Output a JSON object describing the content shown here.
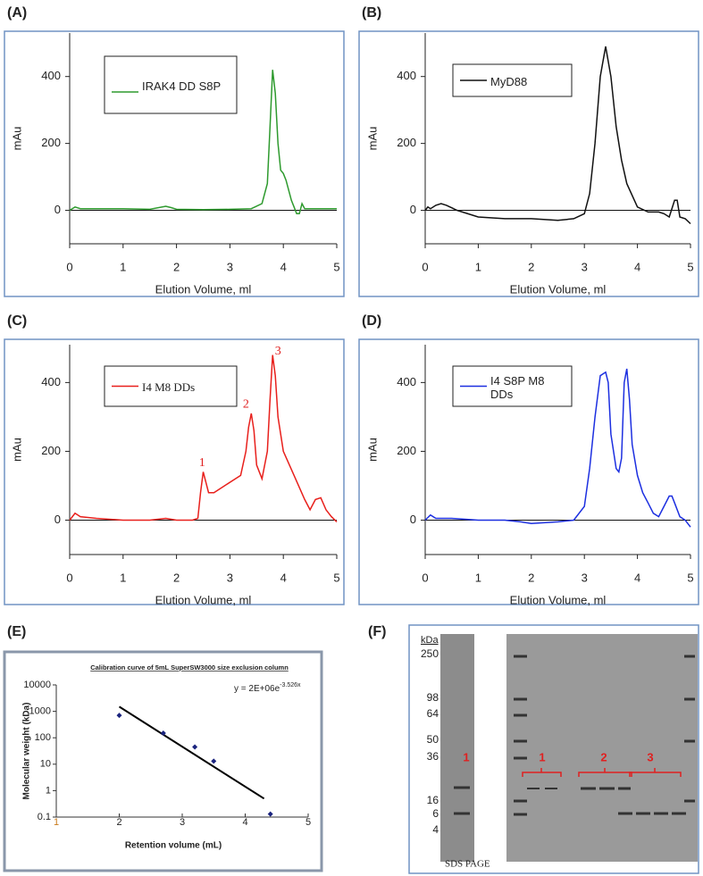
{
  "chart_data": [
    {
      "type": "line",
      "panel": "(A)",
      "ylabel": "mAu",
      "xlabel": "Elution Volume, ml",
      "xlim": [
        0,
        5
      ],
      "xticks": [
        0,
        1,
        2,
        3,
        4,
        5
      ],
      "ylim": [
        -100,
        530
      ],
      "yticks": [
        0,
        200,
        400
      ],
      "zero_line": true,
      "legend": "upper left",
      "x": [
        0,
        0.1,
        0.2,
        0.5,
        1,
        1.5,
        1.8,
        1.9,
        2,
        2.5,
        3,
        3.4,
        3.6,
        3.7,
        3.75,
        3.8,
        3.85,
        3.9,
        3.95,
        4.0,
        4.05,
        4.1,
        4.15,
        4.2,
        4.25,
        4.3,
        4.35,
        4.4,
        4.5,
        5
      ],
      "series": [
        {
          "name": "IRAK4 DD S8P",
          "color": "#2e9a2e",
          "values": [
            0,
            10,
            5,
            5,
            5,
            3,
            12,
            8,
            3,
            2,
            3,
            5,
            20,
            80,
            250,
            420,
            350,
            200,
            120,
            110,
            90,
            60,
            30,
            10,
            -10,
            -10,
            20,
            5,
            5,
            5
          ]
        }
      ]
    },
    {
      "type": "line",
      "panel": "(B)",
      "ylabel": "mAu",
      "xlabel": "Elution Volume, ml",
      "xlim": [
        0,
        5
      ],
      "xticks": [
        0,
        1,
        2,
        3,
        4,
        5
      ],
      "ylim": [
        -100,
        530
      ],
      "yticks": [
        0,
        200,
        400
      ],
      "zero_line": true,
      "legend": "upper left",
      "x": [
        0,
        0.05,
        0.1,
        0.2,
        0.3,
        0.4,
        0.6,
        1,
        1.5,
        2,
        2.5,
        2.8,
        3.0,
        3.1,
        3.2,
        3.3,
        3.4,
        3.5,
        3.6,
        3.7,
        3.8,
        4.0,
        4.2,
        4.4,
        4.5,
        4.6,
        4.7,
        4.75,
        4.8,
        4.9,
        5
      ],
      "series": [
        {
          "name": "MyD88",
          "color": "#111111",
          "values": [
            0,
            10,
            5,
            15,
            20,
            15,
            0,
            -20,
            -25,
            -25,
            -30,
            -25,
            -10,
            50,
            200,
            400,
            490,
            400,
            250,
            150,
            80,
            10,
            -5,
            -5,
            -10,
            -20,
            30,
            30,
            -20,
            -25,
            -40
          ]
        }
      ]
    },
    {
      "type": "line",
      "panel": "(C)",
      "ylabel": "mAu",
      "xlabel": "Elution Volume, ml",
      "xlim": [
        0,
        5
      ],
      "xticks": [
        0,
        1,
        2,
        3,
        4,
        5
      ],
      "ylim": [
        -100,
        510
      ],
      "yticks": [
        0,
        200,
        400
      ],
      "zero_line": true,
      "legend": "upper left",
      "x": [
        0,
        0.1,
        0.2,
        0.5,
        1,
        1.5,
        1.8,
        2,
        2.3,
        2.4,
        2.45,
        2.5,
        2.55,
        2.6,
        2.7,
        2.9,
        3.1,
        3.2,
        3.3,
        3.35,
        3.4,
        3.45,
        3.5,
        3.6,
        3.7,
        3.75,
        3.8,
        3.85,
        3.9,
        4.0,
        4.2,
        4.4,
        4.5,
        4.6,
        4.7,
        4.8,
        4.9,
        5
      ],
      "series": [
        {
          "name": "I4 M8 DDs",
          "color": "#e8201c",
          "values": [
            0,
            20,
            10,
            5,
            0,
            0,
            5,
            0,
            0,
            5,
            80,
            140,
            110,
            80,
            80,
            100,
            120,
            130,
            200,
            270,
            310,
            260,
            160,
            120,
            200,
            350,
            480,
            420,
            300,
            200,
            130,
            60,
            30,
            60,
            65,
            30,
            10,
            -5
          ]
        }
      ],
      "annotations": [
        {
          "text": "1",
          "x": 2.48,
          "y": 165
        },
        {
          "text": "2",
          "x": 3.3,
          "y": 335
        },
        {
          "text": "3",
          "x": 3.9,
          "y": 490
        }
      ]
    },
    {
      "type": "line",
      "panel": "(D)",
      "ylabel": "mAu",
      "xlabel": "Elution Volume, ml",
      "xlim": [
        0,
        5
      ],
      "xticks": [
        0,
        1,
        2,
        3,
        4,
        5
      ],
      "ylim": [
        -100,
        510
      ],
      "yticks": [
        0,
        200,
        400
      ],
      "zero_line": true,
      "legend": "upper left",
      "x": [
        0,
        0.1,
        0.2,
        0.5,
        1,
        1.5,
        1.8,
        2,
        2.5,
        2.8,
        3.0,
        3.1,
        3.2,
        3.3,
        3.4,
        3.45,
        3.5,
        3.6,
        3.65,
        3.7,
        3.75,
        3.8,
        3.85,
        3.9,
        4.0,
        4.1,
        4.2,
        4.3,
        4.4,
        4.5,
        4.6,
        4.65,
        4.7,
        4.8,
        4.9,
        5
      ],
      "series": [
        {
          "name": "I4 S8P M8 DDs",
          "color": "#1c2fe0",
          "values": [
            0,
            15,
            5,
            5,
            0,
            0,
            -5,
            -10,
            -5,
            0,
            40,
            150,
            300,
            420,
            430,
            400,
            250,
            150,
            140,
            180,
            400,
            440,
            350,
            220,
            130,
            80,
            50,
            20,
            10,
            40,
            70,
            70,
            50,
            10,
            0,
            -20
          ]
        }
      ]
    },
    {
      "type": "scatter",
      "panel": "(E)",
      "title": "Calibration curve of 5mL SuperSW3000 size exclusion column",
      "ylabel": "Molecular weight (kDa)",
      "xlabel": "Retention volume (mL)",
      "log_y": true,
      "xlim": [
        1,
        5
      ],
      "xticks": [
        1,
        2,
        3,
        4,
        5
      ],
      "ylim": [
        0.1,
        10000
      ],
      "yticks": [
        0.1,
        1,
        10,
        100,
        1000,
        10000
      ],
      "x": [
        2,
        2.7,
        3.2,
        3.5,
        4.4
      ],
      "values": [
        700,
        150,
        45,
        13,
        0.13
      ],
      "color": "#1a237e",
      "fit": {
        "x": [
          2,
          4.3
        ],
        "values": [
          1500,
          0.5
        ],
        "color": "#000000"
      },
      "equation": {
        "text": "y = 2E+06e",
        "exponent": "-3.526x"
      }
    }
  ],
  "gel": {
    "panel": "(F)",
    "unit": "kDa",
    "markers": [
      "250",
      "98",
      "64",
      "50",
      "36",
      "16",
      "6",
      "4"
    ],
    "lanes": [
      "1",
      "1",
      "2",
      "3"
    ],
    "caption": "SDS PAGE"
  }
}
